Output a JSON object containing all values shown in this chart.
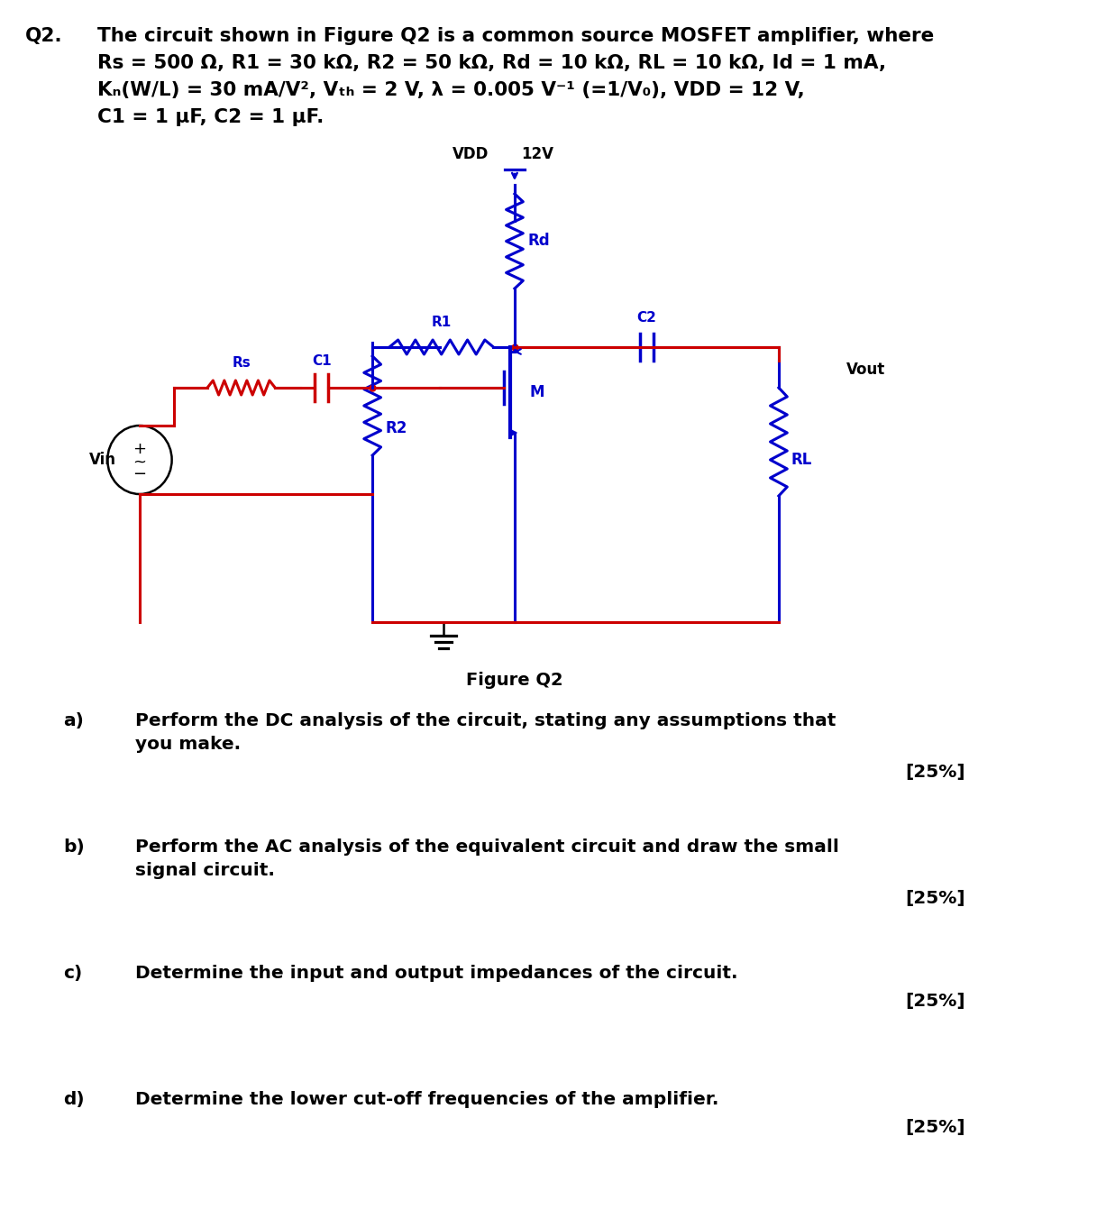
{
  "title_q": "Q2.",
  "title_text_line1": "The circuit shown in Figure Q2 is a common source MOSFET amplifier, where",
  "title_text_line2": "Rs = 500 Ω, R1 = 30 kΩ, R2 = 50 kΩ, Rd = 10 kΩ, RL = 10 kΩ, Id = 1 mA,",
  "title_text_line3": "Kₙ(W/L) = 30 mA/V², Vₜₕ = 2 V, λ = 0.005 V⁻¹ (=1/V₀), VDD = 12 V,",
  "title_text_line4": "C1 = 1 μF, C2 = 1 μF.",
  "figure_caption": "Figure Q2",
  "circuit_color_red": "#CC0000",
  "circuit_color_blue": "#0000CC",
  "circuit_color_black": "#000000",
  "background_color": "#FFFFFF",
  "questions": [
    {
      "label": "a)",
      "text": "Perform the DC analysis of the circuit, stating any assumptions that\nyou make.",
      "mark": "[25%]"
    },
    {
      "label": "b)",
      "text": "Perform the AC analysis of the equivalent circuit and draw the small\nsignal circuit.",
      "mark": "[25%]"
    },
    {
      "label": "c)",
      "text": "Determine the input and output impedances of the circuit.",
      "mark": "[25%]"
    },
    {
      "label": "d)",
      "text": "Determine the lower cut-off frequencies of the amplifier.",
      "mark": "[25%]"
    }
  ]
}
